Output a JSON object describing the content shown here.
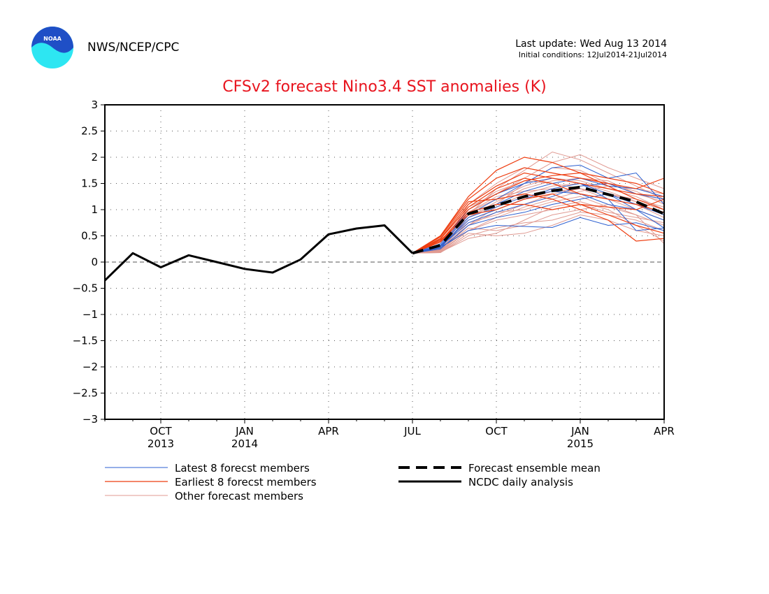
{
  "header": {
    "logo_text": "NOAA",
    "agency": "NWS/NCEP/CPC",
    "last_update": "Last update: Wed Aug 13 2014",
    "initial_conditions": "Initial conditions: 12Jul2014-21Jul2014"
  },
  "colors": {
    "title": "#e8141e",
    "latest": "#2b5fd0",
    "earliest": "#ee3d10",
    "other": "#e09a92",
    "mean": "#000000",
    "analysis": "#000000",
    "logo_blue": "#1f4fc6",
    "logo_cyan": "#2de6f2"
  },
  "chart_data": {
    "type": "line",
    "title": "CFSv2 forecast Nino3.4 SST anomalies (K)",
    "ylim": [
      -3,
      3
    ],
    "yticks": [
      -3,
      -2.5,
      -2,
      -1.5,
      -1,
      -0.5,
      0,
      0.5,
      1,
      1.5,
      2,
      2.5,
      3
    ],
    "ytick_labels": [
      "−3",
      "−2.5",
      "−2",
      "−1.5",
      "−1",
      "−0.5",
      "0",
      "0.5",
      "1",
      "1.5",
      "2",
      "2.5",
      "3"
    ],
    "xlim": [
      0,
      20
    ],
    "xticks": [
      {
        "x": 2,
        "label": "OCT",
        "year": "2013"
      },
      {
        "x": 5,
        "label": "JAN",
        "year": "2014"
      },
      {
        "x": 8,
        "label": "APR",
        "year": ""
      },
      {
        "x": 11,
        "label": "JUL",
        "year": ""
      },
      {
        "x": 14,
        "label": "OCT",
        "year": ""
      },
      {
        "x": 17,
        "label": "JAN",
        "year": "2015"
      },
      {
        "x": 20,
        "label": "APR",
        "year": ""
      }
    ],
    "grid": true,
    "zero_line": true,
    "legend": [
      {
        "label": "Latest 8 forecst members",
        "style": "latest"
      },
      {
        "label": "Earliest 8 forecst members",
        "style": "earliest"
      },
      {
        "label": "Other forecast members",
        "style": "other"
      },
      {
        "label": "Forecast ensemble mean",
        "style": "mean"
      },
      {
        "label": "NCDC daily analysis",
        "style": "analysis"
      }
    ],
    "analysis": {
      "x": [
        0,
        1,
        2,
        3,
        4,
        5,
        6,
        7,
        8,
        9,
        10,
        11
      ],
      "y": [
        -0.35,
        0.17,
        -0.1,
        0.13,
        0.0,
        -0.13,
        -0.2,
        0.05,
        0.53,
        0.64,
        0.7,
        0.17
      ]
    },
    "ensemble_mean": {
      "x": [
        11,
        12,
        13,
        14,
        15,
        16,
        17,
        18,
        19,
        20
      ],
      "y": [
        0.17,
        0.32,
        0.92,
        1.08,
        1.25,
        1.36,
        1.43,
        1.29,
        1.15,
        0.92
      ]
    },
    "members_x": [
      11,
      12,
      13,
      14,
      15,
      16,
      17,
      18,
      19,
      20
    ],
    "latest_members": [
      [
        0.17,
        0.3,
        0.8,
        1.0,
        1.2,
        1.4,
        1.5,
        1.3,
        1.1,
        0.9
      ],
      [
        0.17,
        0.25,
        0.7,
        0.85,
        0.95,
        1.1,
        1.2,
        1.3,
        1.0,
        0.8
      ],
      [
        0.17,
        0.28,
        0.6,
        0.7,
        0.68,
        0.66,
        0.85,
        0.7,
        0.75,
        0.6
      ],
      [
        0.17,
        0.3,
        0.9,
        1.2,
        1.5,
        1.8,
        1.85,
        1.6,
        1.7,
        1.1
      ],
      [
        0.17,
        0.35,
        1.0,
        1.3,
        1.5,
        1.6,
        1.5,
        1.2,
        0.6,
        0.65
      ],
      [
        0.17,
        0.3,
        0.75,
        0.95,
        1.1,
        1.25,
        1.45,
        1.5,
        1.3,
        1.2
      ],
      [
        0.17,
        0.27,
        0.85,
        1.05,
        1.25,
        1.35,
        1.3,
        1.1,
        1.0,
        0.65
      ],
      [
        0.17,
        0.32,
        0.95,
        1.1,
        1.35,
        1.5,
        1.6,
        1.45,
        1.4,
        1.25
      ]
    ],
    "earliest_members": [
      [
        0.17,
        0.5,
        1.2,
        1.6,
        1.8,
        1.7,
        1.6,
        1.5,
        1.4,
        1.6
      ],
      [
        0.17,
        0.45,
        1.1,
        1.45,
        1.7,
        1.6,
        1.5,
        1.4,
        1.3,
        1.25
      ],
      [
        0.17,
        0.4,
        1.0,
        1.3,
        1.55,
        1.65,
        1.7,
        1.45,
        1.2,
        1.0
      ],
      [
        0.17,
        0.48,
        1.15,
        1.2,
        1.3,
        1.2,
        1.0,
        0.8,
        0.4,
        0.45
      ],
      [
        0.17,
        0.42,
        0.9,
        1.0,
        1.2,
        1.3,
        1.1,
        0.9,
        0.7,
        0.55
      ],
      [
        0.17,
        0.5,
        1.25,
        1.75,
        2.0,
        1.9,
        1.7,
        1.6,
        1.5,
        1.3
      ],
      [
        0.17,
        0.38,
        0.95,
        1.1,
        1.1,
        1.0,
        1.1,
        1.05,
        1.0,
        1.2
      ],
      [
        0.17,
        0.44,
        1.05,
        1.4,
        1.6,
        1.5,
        1.3,
        1.2,
        1.1,
        0.95
      ]
    ],
    "other_members": [
      [
        0.17,
        0.2,
        0.75,
        0.9,
        1.1,
        1.3,
        1.4,
        1.2,
        1.0,
        0.8
      ],
      [
        0.17,
        0.22,
        0.65,
        0.6,
        0.7,
        0.9,
        1.0,
        1.1,
        0.9,
        0.7
      ],
      [
        0.17,
        0.18,
        0.55,
        0.5,
        0.55,
        0.7,
        0.9,
        0.8,
        0.6,
        0.5
      ],
      [
        0.17,
        0.25,
        1.05,
        1.3,
        1.6,
        1.9,
        2.05,
        1.8,
        1.6,
        1.4
      ],
      [
        0.17,
        0.24,
        0.95,
        1.2,
        1.45,
        1.6,
        1.55,
        1.4,
        1.25,
        1.0
      ],
      [
        0.17,
        0.21,
        0.7,
        0.95,
        1.0,
        1.15,
        1.25,
        1.05,
        0.9,
        0.35
      ],
      [
        0.17,
        0.19,
        0.6,
        0.8,
        0.9,
        1.0,
        1.1,
        0.95,
        0.85,
        0.75
      ],
      [
        0.17,
        0.23,
        0.85,
        1.15,
        1.4,
        1.55,
        1.6,
        1.55,
        1.3,
        1.15
      ],
      [
        0.17,
        0.2,
        0.9,
        1.4,
        1.75,
        2.1,
        1.95,
        1.7,
        1.45,
        1.2
      ],
      [
        0.17,
        0.22,
        0.8,
        1.0,
        1.2,
        1.35,
        1.4,
        1.3,
        1.2,
        1.05
      ],
      [
        0.17,
        0.18,
        0.5,
        0.65,
        0.75,
        0.8,
        0.95,
        0.9,
        0.8,
        0.6
      ],
      [
        0.17,
        0.26,
        1.1,
        1.5,
        1.8,
        1.7,
        1.6,
        1.5,
        1.35,
        1.1
      ],
      [
        0.17,
        0.2,
        0.7,
        1.05,
        1.3,
        1.45,
        1.5,
        1.35,
        1.15,
        0.9
      ],
      [
        0.17,
        0.24,
        0.95,
        1.25,
        1.35,
        1.4,
        1.3,
        1.2,
        1.1,
        0.85
      ],
      [
        0.17,
        0.21,
        0.6,
        0.85,
        1.05,
        1.2,
        1.35,
        1.45,
        1.4,
        1.3
      ],
      [
        0.17,
        0.19,
        0.45,
        0.55,
        0.8,
        1.05,
        1.15,
        1.0,
        0.7,
        0.4
      ],
      [
        0.17,
        0.23,
        0.85,
        1.1,
        1.5,
        1.8,
        1.75,
        1.5,
        1.3,
        1.2
      ],
      [
        0.17,
        0.25,
        1.0,
        1.35,
        1.55,
        1.5,
        1.4,
        1.3,
        1.15,
        1.0
      ]
    ]
  }
}
